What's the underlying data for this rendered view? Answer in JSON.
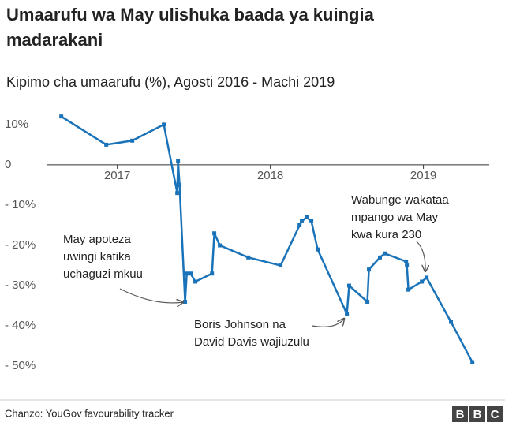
{
  "chart_data": {
    "type": "line",
    "title_lines": [
      "Umaarufu wa May ulishuka baada ya kuingia",
      "madarakani"
    ],
    "subtitle": "Kipimo cha umaarufu (%), Agosti 2016 - Machi 2019",
    "source": "Chanzo: YouGov favourability tracker",
    "logo": "BBC",
    "x": [
      2016.634,
      2016.928,
      2017.098,
      2017.304,
      2017.392,
      2017.397,
      2017.407,
      2017.443,
      2017.454,
      2017.479,
      2017.51,
      2017.619,
      2017.634,
      2017.67,
      2017.856,
      2018.067,
      2018.191,
      2018.206,
      2018.237,
      2018.268,
      2018.309,
      2018.5,
      2018.515,
      2018.634,
      2018.644,
      2018.716,
      2018.747,
      2018.887,
      2018.892,
      2018.902,
      2018.99,
      2019.021,
      2019.18,
      2019.32
    ],
    "series": [
      {
        "color": "#1a73b8",
        "values": [
          12,
          5,
          6,
          10,
          -7,
          1,
          -5,
          -34,
          -27,
          -27,
          -29,
          -27,
          -17,
          -20,
          -23,
          -25,
          -15,
          -14,
          -13,
          -14,
          -21,
          -37,
          -30,
          -34,
          -26,
          -23,
          -22,
          -24,
          -25,
          -31,
          -29,
          -28,
          -39,
          -49
        ]
      }
    ],
    "xlim": [
      2016.44,
      2019.43
    ],
    "xticks": [
      2017,
      2018,
      2019
    ],
    "ylim": [
      -53.1,
      13.5
    ],
    "yticks": [
      {
        "value": 10,
        "label": "10%"
      },
      0,
      {
        "value": -10,
        "label": "- 10%"
      },
      {
        "value": -20,
        "label": "- 20%"
      },
      {
        "value": -30,
        "label": "- 30%"
      },
      {
        "value": -40,
        "label": "- 40%"
      },
      {
        "value": -50,
        "label": "- 50%"
      }
    ],
    "annotations": [
      {
        "lines": [
          "May apoteza",
          "uwingi katika",
          "uchaguzi mkuu"
        ]
      },
      {
        "lines": [
          "Boris Johnson na",
          "David Davis wajiuzulu"
        ]
      },
      {
        "lines": [
          "Wabunge wakataa",
          "mpango wa May",
          "kwa kura 230"
        ]
      }
    ]
  }
}
